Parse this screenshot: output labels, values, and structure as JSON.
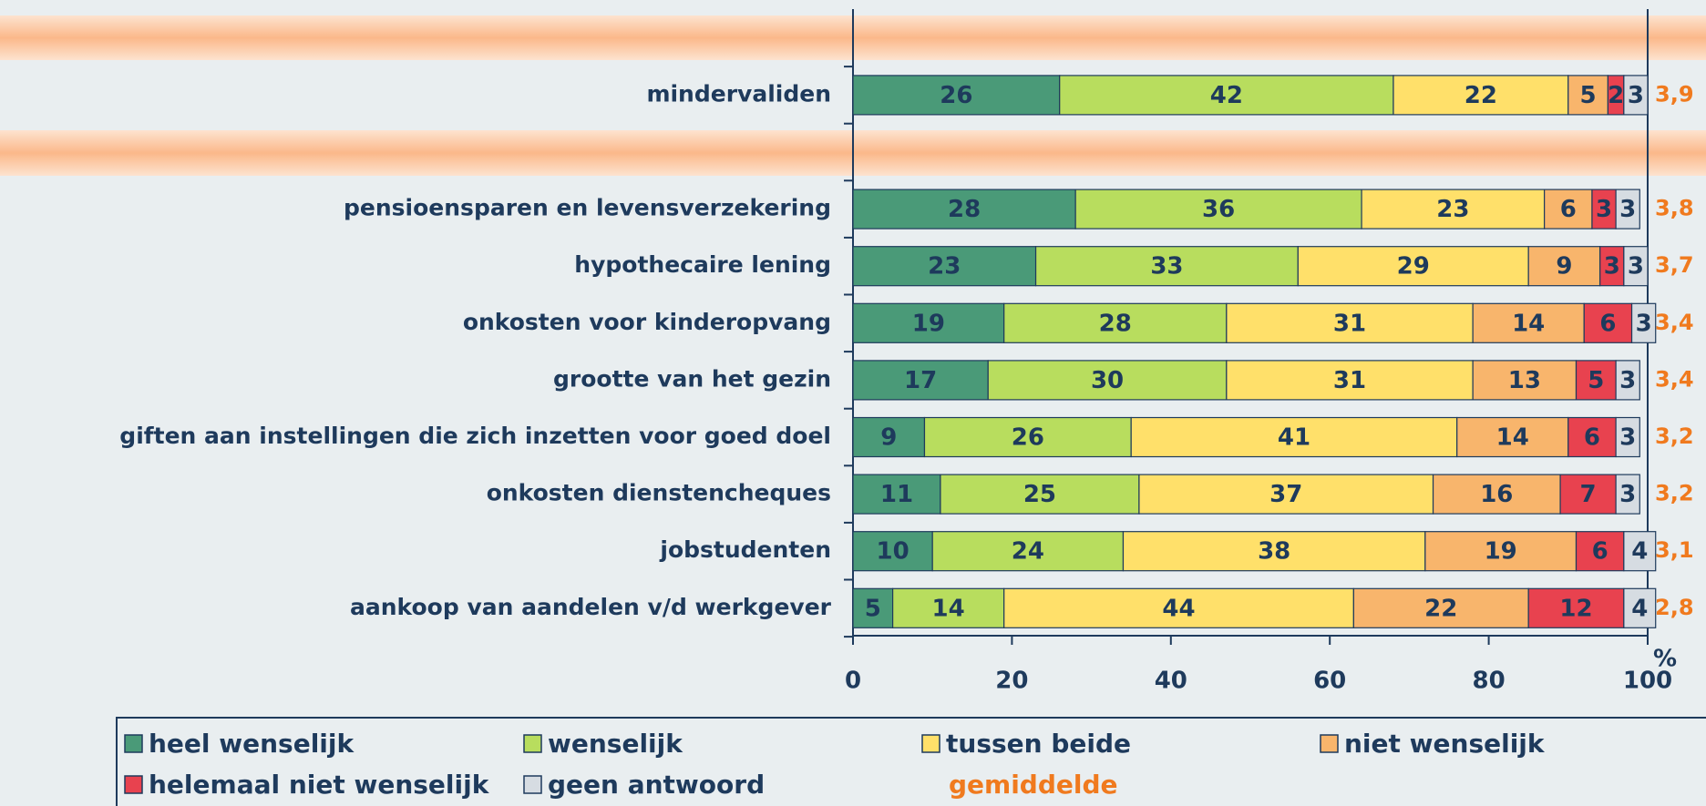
{
  "chart_data": {
    "type": "stacked_barh",
    "categories": [
      null,
      "mindervaliden",
      null,
      "pensioensparen en levensverzekering",
      "hypothecaire lening",
      "onkosten voor kinderopvang",
      "grootte van het gezin",
      "giften aan instellingen die zich inzetten voor goed doel",
      "onkosten dienstencheques",
      "jobstudenten",
      "aankoop van aandelen v/d werkgever"
    ],
    "series": [
      {
        "name": "heel wenselijk",
        "color": "#4a9a78",
        "values": [
          null,
          26,
          null,
          28,
          23,
          19,
          17,
          9,
          11,
          10,
          5
        ]
      },
      {
        "name": "wenselijk",
        "color": "#b8dd5e",
        "values": [
          null,
          42,
          null,
          36,
          33,
          28,
          30,
          26,
          25,
          24,
          14
        ]
      },
      {
        "name": "tussen beide",
        "color": "#ffe06a",
        "values": [
          null,
          22,
          null,
          23,
          29,
          31,
          31,
          41,
          37,
          38,
          44
        ]
      },
      {
        "name": "niet wenselijk",
        "color": "#f8b56c",
        "values": [
          null,
          5,
          null,
          6,
          9,
          14,
          13,
          14,
          16,
          19,
          22
        ]
      },
      {
        "name": "helemaal niet wenselijk",
        "color": "#e8424f",
        "values": [
          null,
          2,
          null,
          3,
          3,
          6,
          5,
          6,
          7,
          6,
          12
        ]
      },
      {
        "name": "geen antwoord",
        "color": "#d6dce2",
        "values": [
          null,
          3,
          null,
          3,
          3,
          3,
          3,
          3,
          3,
          4,
          4
        ]
      }
    ],
    "averages": {
      "name": "gemiddelde",
      "color": "#f07a1e",
      "values": [
        null,
        3.9,
        null,
        3.8,
        3.7,
        3.4,
        3.4,
        3.2,
        3.2,
        3.1,
        2.8
      ],
      "value_labels": [
        null,
        "3,9",
        null,
        "3,8",
        "3,7",
        "3,4",
        "3,4",
        "3,2",
        "3,2",
        "3,1",
        "2,8"
      ]
    },
    "xlim": [
      0,
      100
    ],
    "xticks": [
      0,
      20,
      40,
      60,
      80,
      100
    ],
    "xlabel": "%"
  }
}
